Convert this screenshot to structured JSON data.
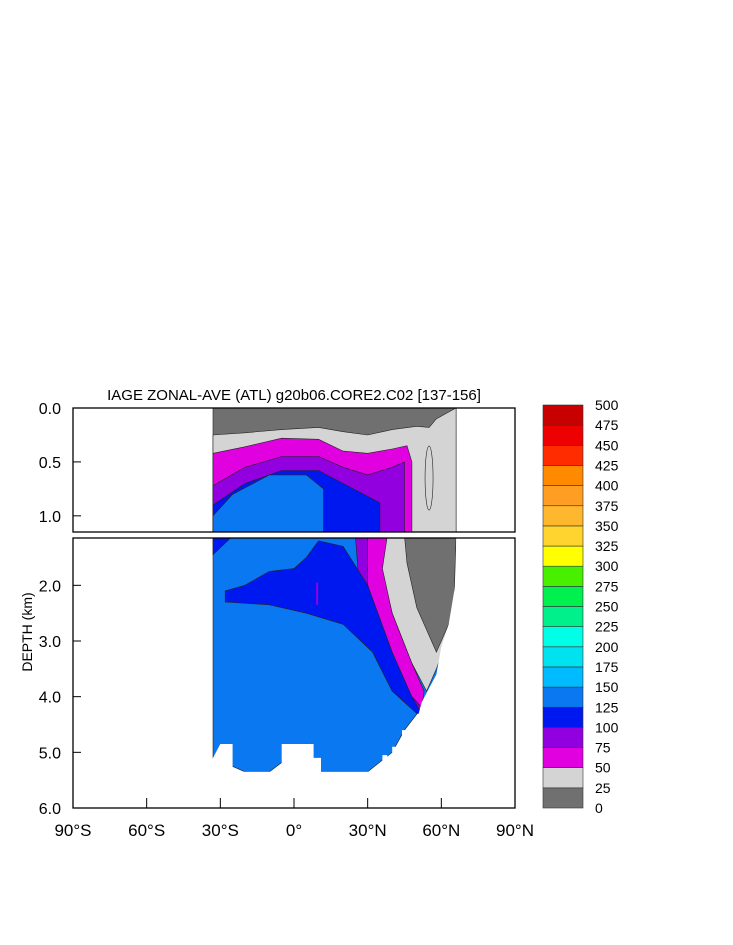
{
  "chart_data": {
    "type": "heatmap",
    "title": "IAGE ZONAL-AVE (ATL) g20b06.CORE2.C02 [137-156]",
    "xlabel": "",
    "ylabel": "DEPTH (km)",
    "xlim": [
      -90,
      90
    ],
    "ylim": [
      6.0,
      0.0
    ],
    "x_ticks": [
      {
        "value": -90,
        "label": "90°S"
      },
      {
        "value": -60,
        "label": "60°S"
      },
      {
        "value": -30,
        "label": "30°S"
      },
      {
        "value": 0,
        "label": "0°"
      },
      {
        "value": 30,
        "label": "30°N"
      },
      {
        "value": 60,
        "label": "60°N"
      },
      {
        "value": 90,
        "label": "90°N"
      }
    ],
    "y_ticks_upper": [
      {
        "value": 0.0,
        "label": "0.0"
      },
      {
        "value": 0.5,
        "label": "0.5"
      },
      {
        "value": 1.0,
        "label": "1.0"
      }
    ],
    "y_ticks_lower": [
      {
        "value": 2.0,
        "label": "2.0"
      },
      {
        "value": 3.0,
        "label": "3.0"
      },
      {
        "value": 4.0,
        "label": "4.0"
      },
      {
        "value": 5.0,
        "label": "5.0"
      },
      {
        "value": 6.0,
        "label": "6.0"
      }
    ],
    "colorbar": {
      "labels": [
        "0",
        "25",
        "50",
        "75",
        "100",
        "125",
        "150",
        "175",
        "200",
        "225",
        "250",
        "275",
        "300",
        "325",
        "350",
        "375",
        "400",
        "425",
        "450",
        "475",
        "500"
      ],
      "colors": [
        "#707070",
        "#d4d4d4",
        "#e000e0",
        "#9300e0",
        "#0018f0",
        "#0a78f0",
        "#00bbff",
        "#00e2ef",
        "#00ffe6",
        "#00f08c",
        "#00f04e",
        "#48f000",
        "#ffff00",
        "#ffd42e",
        "#ffb82e",
        "#ff9e22",
        "#ff8a00",
        "#ff2c00",
        "#ee0000",
        "#c80000"
      ]
    },
    "ocean_extent": {
      "south_lat": -33,
      "north_lat_max": 66
    },
    "upper_contours": {
      "age_0_25": {
        "lat": [
          -33,
          -20,
          -5,
          10,
          20,
          30,
          40,
          50,
          55,
          58,
          62,
          66
        ],
        "depth_km": [
          0.25,
          0.23,
          0.2,
          0.18,
          0.22,
          0.25,
          0.2,
          0.17,
          0.18,
          0.1,
          0.05,
          0.0
        ]
      },
      "age_25_50": {
        "lat": [
          -33,
          -20,
          -5,
          10,
          20,
          30,
          40,
          46,
          48
        ],
        "depth_km": [
          0.42,
          0.36,
          0.28,
          0.29,
          0.4,
          0.42,
          0.38,
          0.35,
          0.5
        ]
      },
      "age_50_75": {
        "lat": [
          -33,
          -20,
          -5,
          10,
          20,
          30,
          40,
          45
        ],
        "depth_km": [
          0.72,
          0.55,
          0.45,
          0.45,
          0.55,
          0.62,
          0.55,
          0.5
        ]
      },
      "age_75_100": {
        "lat": [
          -33,
          -20,
          -5,
          10,
          20,
          30,
          35
        ],
        "depth_km": [
          0.9,
          0.7,
          0.58,
          0.58,
          0.7,
          0.82,
          0.88
        ]
      },
      "age_100_125": {
        "lat": [
          -33,
          -25,
          -10,
          5,
          12,
          12
        ],
        "depth_km": [
          1.0,
          0.8,
          0.62,
          0.62,
          0.75,
          1.1
        ]
      }
    },
    "lower_contours": {
      "age_125_150_tongue": {
        "lat": [
          -28,
          -20,
          -10,
          0,
          5,
          10,
          20,
          30,
          40,
          48,
          52
        ],
        "depth_km": [
          2.1,
          2.0,
          1.75,
          1.7,
          1.5,
          1.2,
          1.3,
          2.0,
          3.2,
          4.0,
          4.3
        ]
      },
      "age_75_125_band": {
        "lat": [
          25,
          30,
          35,
          40,
          45,
          50,
          53
        ],
        "depth_km": [
          1.3,
          1.6,
          2.2,
          2.9,
          3.4,
          3.8,
          4.1
        ]
      },
      "bottom_depth": {
        "lat": [
          -33,
          -20,
          -10,
          5,
          10,
          30,
          40,
          45,
          52
        ],
        "depth_km": [
          5.1,
          5.35,
          5.35,
          4.85,
          5.35,
          5.35,
          5.0,
          4.6,
          4.2
        ]
      }
    }
  }
}
